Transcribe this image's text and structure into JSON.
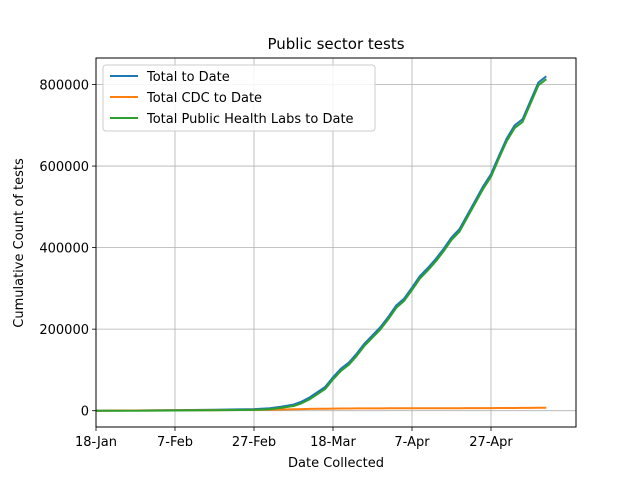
{
  "chart_data": {
    "type": "line",
    "title": "Public sector tests",
    "xlabel": "Date Collected",
    "ylabel": "Cumulative Count of tests",
    "x_ticks": [
      "18-Jan",
      "7-Feb",
      "27-Feb",
      "18-Mar",
      "7-Apr",
      "27-Apr"
    ],
    "x": [
      "18-Jan",
      "28-Jan",
      "7-Feb",
      "17-Feb",
      "27-Feb",
      "2-Mar",
      "5-Mar",
      "8-Mar",
      "10-Mar",
      "12-Mar",
      "14-Mar",
      "16-Mar",
      "18-Mar",
      "20-Mar",
      "22-Mar",
      "24-Mar",
      "26-Mar",
      "28-Mar",
      "30-Mar",
      "1-Apr",
      "3-Apr",
      "5-Apr",
      "7-Apr",
      "9-Apr",
      "11-Apr",
      "13-Apr",
      "15-Apr",
      "17-Apr",
      "19-Apr",
      "21-Apr",
      "23-Apr",
      "25-Apr",
      "27-Apr",
      "29-Apr",
      "1-May",
      "3-May",
      "5-May",
      "7-May",
      "9-May",
      "11-May"
    ],
    "y_ticks": [
      0,
      200000,
      400000,
      600000,
      800000
    ],
    "ylim": [
      -40000,
      865000
    ],
    "grid": true,
    "legend_position": "top-left",
    "series": [
      {
        "name": "Total to Date",
        "color": "#1f77b4",
        "values": [
          0,
          500,
          1500,
          2500,
          4000,
          6000,
          10000,
          15000,
          22000,
          32000,
          45000,
          58000,
          82000,
          103000,
          118000,
          140000,
          165000,
          185000,
          205000,
          230000,
          258000,
          275000,
          302000,
          330000,
          350000,
          372000,
          397000,
          425000,
          445000,
          480000,
          515000,
          550000,
          580000,
          625000,
          668000,
          700000,
          715000,
          760000,
          805000,
          820000
        ]
      },
      {
        "name": "Total CDC to Date",
        "color": "#ff7f0e",
        "values": [
          0,
          500,
          1000,
          1500,
          2000,
          2500,
          3000,
          3500,
          4000,
          4500,
          4800,
          5000,
          5200,
          5300,
          5400,
          5500,
          5600,
          5650,
          5700,
          5750,
          5800,
          5850,
          5900,
          5950,
          6000,
          6050,
          6100,
          6150,
          6200,
          6250,
          6300,
          6350,
          6400,
          6500,
          6600,
          6700,
          6800,
          6900,
          7000,
          7100
        ]
      },
      {
        "name": "Total Public Health Labs to Date",
        "color": "#2ca02c",
        "values": [
          0,
          0,
          500,
          1000,
          2000,
          3500,
          7000,
          11500,
          18000,
          27500,
          40200,
          53000,
          76800,
          97700,
          112600,
          134500,
          159400,
          179350,
          199300,
          224250,
          252200,
          269150,
          296100,
          324050,
          344000,
          365950,
          390900,
          418850,
          438800,
          473750,
          508700,
          543650,
          573600,
          618500,
          661400,
          693300,
          708200,
          753100,
          798000,
          812900
        ]
      }
    ]
  }
}
